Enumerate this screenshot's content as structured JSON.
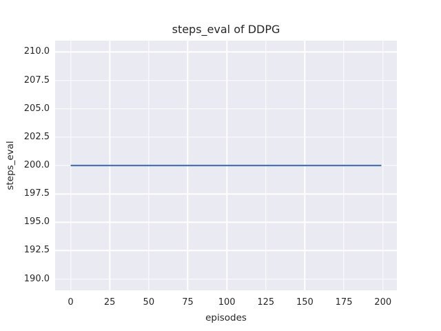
{
  "chart_data": {
    "type": "line",
    "title": "steps_eval of DDPG",
    "xlabel": "episodes",
    "ylabel": "steps_eval",
    "xlim": [
      -9.95,
      208.95
    ],
    "ylim": [
      189,
      211
    ],
    "xticks": [
      0,
      25,
      50,
      75,
      100,
      125,
      150,
      175,
      200
    ],
    "xtick_labels": [
      "0",
      "25",
      "50",
      "75",
      "100",
      "125",
      "150",
      "175",
      "200"
    ],
    "yticks": [
      190.0,
      192.5,
      195.0,
      197.5,
      200.0,
      202.5,
      205.0,
      207.5,
      210.0
    ],
    "ytick_labels": [
      "190.0",
      "192.5",
      "195.0",
      "197.5",
      "200.0",
      "202.5",
      "205.0",
      "207.5",
      "210.0"
    ],
    "grid": true,
    "legend_position": "none",
    "series": [
      {
        "name": "DDPG steps_eval",
        "color": "#4c72b0",
        "x": [
          0,
          199
        ],
        "y": [
          200,
          200
        ]
      }
    ]
  },
  "colors": {
    "figure_background": "#ffffff",
    "plot_background": "#eaeaf2",
    "grid": "#ffffff",
    "text": "#262626",
    "line": "#4c72b0"
  }
}
